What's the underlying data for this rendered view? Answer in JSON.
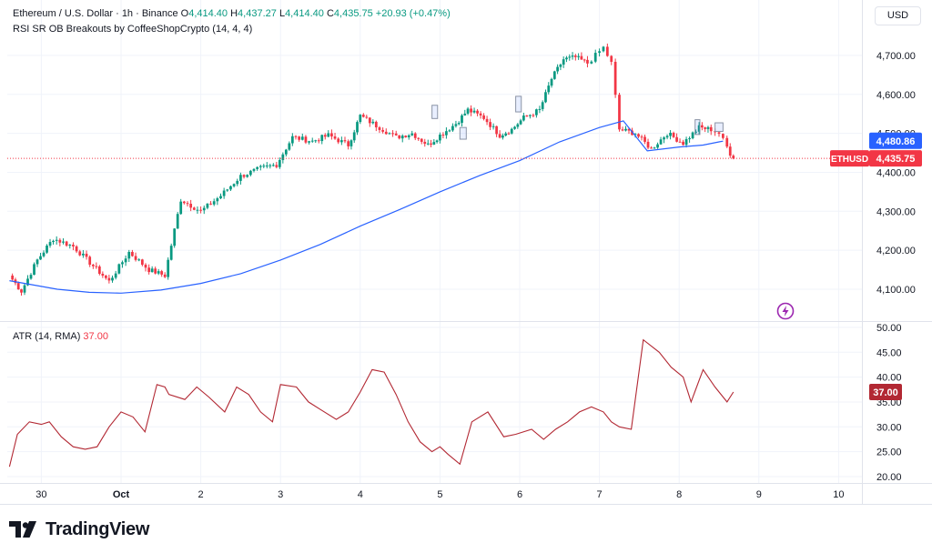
{
  "header": {
    "symbol_line": "Ethereum / U.S. Dollar · 1h · Binance",
    "o_label": "O",
    "o_value": "4,414.40",
    "h_label": "H",
    "h_value": "4,437.27",
    "l_label": "L",
    "l_value": "4,414.40",
    "c_label": "C",
    "c_value": "4,435.75",
    "change": "+20.93 (+0.47%)",
    "indicator": "RSI SR OB Breakouts by CoffeeShopCrypto (14, 4, 4)"
  },
  "currency_button": "USD",
  "brand": {
    "name": "TradingView",
    "icon": "tradingview-logo-icon"
  },
  "colors": {
    "up": "#089981",
    "down": "#f23645",
    "ma": "#2962ff",
    "atr": "#b22833",
    "price_label_bg": "#f23645",
    "ma_label_bg": "#2962ff",
    "grid": "#f0f3fa"
  },
  "chart_data": [
    {
      "type": "candlestick",
      "title": "Ethereum / U.S. Dollar",
      "x_ticks": [
        "30",
        "Oct",
        "2",
        "3",
        "4",
        "5",
        "6",
        "7",
        "8",
        "9",
        "10"
      ],
      "y_ticks": [
        "4,100.00",
        "4,200.00",
        "4,300.00",
        "4,400.00",
        "4,500.00",
        "4,600.00",
        "4,700.00"
      ],
      "ylim": [
        4060,
        4770
      ],
      "xlim": [
        -1.42,
        10.23
      ],
      "last_price_label": "ETHUSD",
      "last_price": "4,435.75",
      "ma_value": "4,480.86",
      "anchors": [
        [
          -1.4,
          4135
        ],
        [
          -1.25,
          4095
        ],
        [
          -1.05,
          4175
        ],
        [
          -0.85,
          4230
        ],
        [
          -0.6,
          4210
        ],
        [
          -0.35,
          4160
        ],
        [
          -0.15,
          4120
        ],
        [
          0.1,
          4195
        ],
        [
          0.35,
          4150
        ],
        [
          0.55,
          4135
        ],
        [
          0.75,
          4330
        ],
        [
          1.0,
          4300
        ],
        [
          1.25,
          4340
        ],
        [
          1.5,
          4390
        ],
        [
          1.75,
          4410
        ],
        [
          1.95,
          4420
        ],
        [
          2.15,
          4490
        ],
        [
          2.4,
          4480
        ],
        [
          2.6,
          4495
        ],
        [
          2.85,
          4470
        ],
        [
          3.0,
          4545
        ],
        [
          3.2,
          4520
        ],
        [
          3.45,
          4490
        ],
        [
          3.65,
          4500
        ],
        [
          3.85,
          4470
        ],
        [
          4.0,
          4495
        ],
        [
          4.2,
          4525
        ],
        [
          4.35,
          4560
        ],
        [
          4.55,
          4540
        ],
        [
          4.75,
          4495
        ],
        [
          4.9,
          4510
        ],
        [
          5.05,
          4540
        ],
        [
          5.25,
          4560
        ],
        [
          5.4,
          4640
        ],
        [
          5.55,
          4690
        ],
        [
          5.7,
          4695
        ],
        [
          5.85,
          4680
        ],
        [
          5.95,
          4700
        ],
        [
          6.05,
          4720
        ],
        [
          6.15,
          4680
        ],
        [
          6.25,
          4510
        ],
        [
          6.45,
          4500
        ],
        [
          6.65,
          4460
        ],
        [
          6.85,
          4500
        ],
        [
          7.05,
          4475
        ],
        [
          7.25,
          4515
        ],
        [
          7.4,
          4510
        ],
        [
          7.5,
          4500
        ],
        [
          7.6,
          4465
        ],
        [
          7.68,
          4432
        ]
      ],
      "ma_anchors": [
        [
          -1.4,
          4122
        ],
        [
          -0.8,
          4100
        ],
        [
          -0.4,
          4092
        ],
        [
          0.0,
          4090
        ],
        [
          0.5,
          4098
        ],
        [
          1.0,
          4115
        ],
        [
          1.5,
          4140
        ],
        [
          2.0,
          4175
        ],
        [
          2.5,
          4215
        ],
        [
          3.0,
          4262
        ],
        [
          3.5,
          4305
        ],
        [
          4.0,
          4350
        ],
        [
          4.5,
          4392
        ],
        [
          5.0,
          4430
        ],
        [
          5.5,
          4478
        ],
        [
          6.0,
          4515
        ],
        [
          6.3,
          4532
        ],
        [
          6.6,
          4455
        ],
        [
          7.0,
          4465
        ],
        [
          7.3,
          4470
        ],
        [
          7.5,
          4478
        ],
        [
          7.55,
          4480
        ]
      ],
      "boxes": [
        [
          3.9,
          3.97,
          4538,
          4572
        ],
        [
          4.25,
          4.33,
          4485,
          4515
        ],
        [
          4.95,
          5.02,
          4555,
          4595
        ],
        [
          7.2,
          7.26,
          4497,
          4535
        ],
        [
          7.45,
          7.55,
          4505,
          4527
        ]
      ]
    },
    {
      "type": "line",
      "title": "ATR (14, RMA)",
      "last_value": "37.00",
      "y_ticks": [
        "20.00",
        "25.00",
        "30.00",
        "35.00",
        "40.00",
        "45.00",
        "50.00"
      ],
      "ylim": [
        18,
        51.5
      ],
      "x": [
        -1.4,
        -1.3,
        -1.15,
        -1.0,
        -0.9,
        -0.75,
        -0.6,
        -0.45,
        -0.3,
        -0.15,
        0.0,
        0.15,
        0.3,
        0.45,
        0.55,
        0.6,
        0.8,
        0.95,
        1.1,
        1.3,
        1.45,
        1.6,
        1.75,
        1.9,
        2.0,
        2.2,
        2.35,
        2.5,
        2.7,
        2.85,
        3.0,
        3.15,
        3.3,
        3.45,
        3.6,
        3.75,
        3.9,
        4.0,
        4.1,
        4.25,
        4.4,
        4.6,
        4.8,
        4.95,
        5.15,
        5.3,
        5.45,
        5.6,
        5.75,
        5.9,
        6.05,
        6.15,
        6.25,
        6.4,
        6.55,
        6.75,
        6.9,
        7.05,
        7.15,
        7.3,
        7.45,
        7.6,
        7.68
      ],
      "values": [
        22,
        28.5,
        31,
        30.5,
        31,
        28,
        26,
        25.5,
        26,
        30,
        33,
        32,
        29,
        38.5,
        38,
        36.5,
        35.5,
        38,
        36,
        33,
        38,
        36.5,
        33,
        31,
        38.5,
        38,
        35,
        33.5,
        31.5,
        33,
        37,
        41.5,
        41,
        36.5,
        31,
        27,
        25,
        26,
        24.5,
        22.5,
        31,
        33,
        28,
        28.5,
        29.5,
        27.5,
        29.5,
        31,
        33,
        34,
        33,
        31,
        30,
        29.5,
        47.5,
        45,
        42,
        40,
        35,
        41.5,
        38,
        35,
        37
      ]
    }
  ]
}
